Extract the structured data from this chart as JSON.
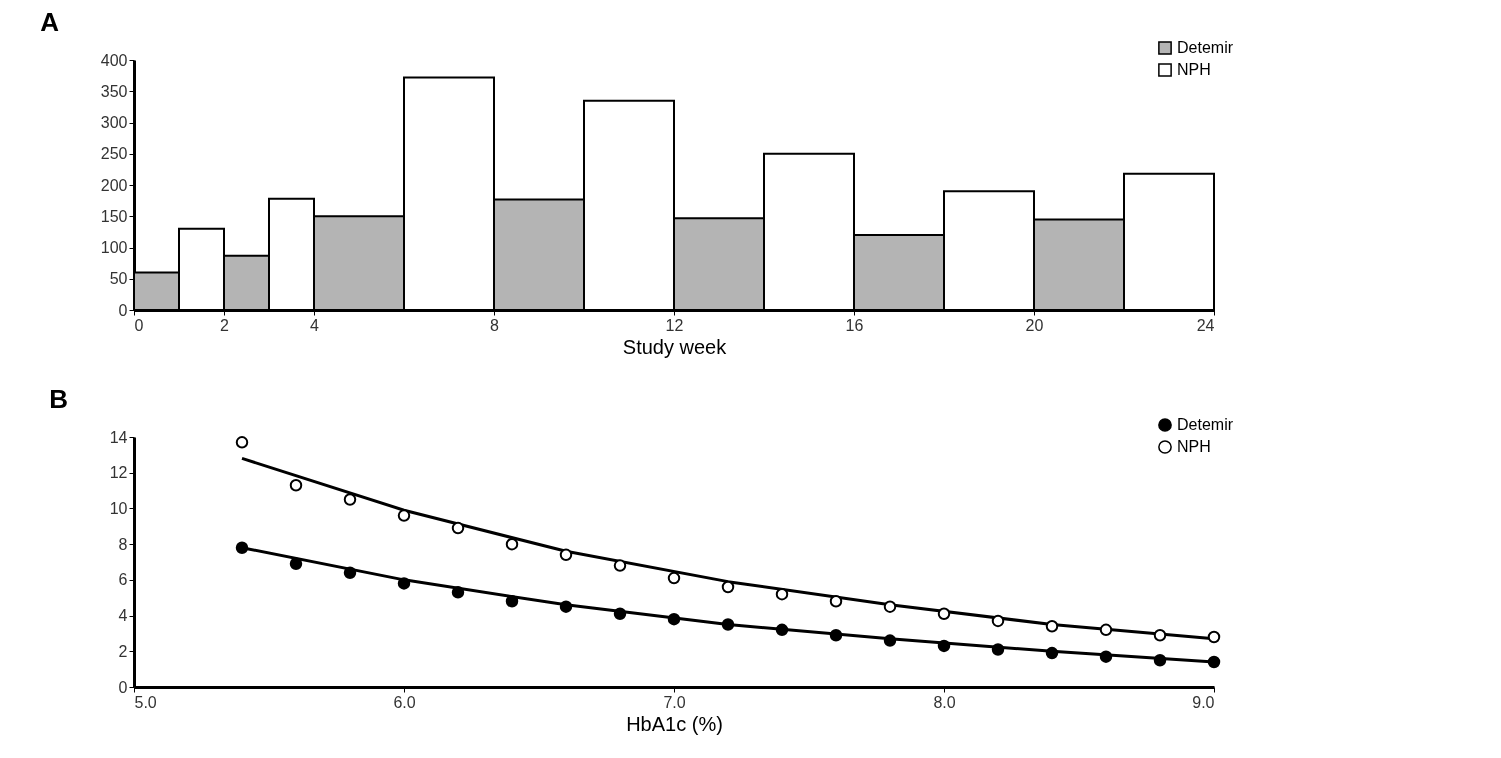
{
  "chart_data": [
    {
      "type": "bar",
      "title": "A",
      "xlabel": "Study week",
      "xlim": [
        0,
        24
      ],
      "xticks": [
        0,
        2,
        4,
        8,
        12,
        16,
        20,
        24
      ],
      "ylim": [
        0,
        400
      ],
      "yticks": [
        0,
        50,
        100,
        150,
        200,
        250,
        300,
        350,
        400
      ],
      "grid": false,
      "legend": "top right",
      "series": [
        {
          "name": "Detemir",
          "color": "#b4b4b4",
          "x": [
            0.5,
            2.5,
            5,
            9,
            13,
            17,
            21
          ],
          "values": [
            60,
            87,
            150,
            177,
            147,
            120,
            145
          ]
        },
        {
          "name": "NPH",
          "color": "#ffffff",
          "x": [
            1.5,
            3.5,
            7,
            11,
            15,
            19,
            23
          ],
          "values": [
            130,
            178,
            372,
            335,
            250,
            190,
            218
          ]
        }
      ]
    },
    {
      "type": "scatter",
      "title": "B",
      "xlabel": "HbA1c (%)",
      "xlim": [
        5.0,
        9.0
      ],
      "xticks": [
        {
          "value": 5,
          "label": "5.0"
        },
        {
          "value": 6,
          "label": "6.0"
        },
        {
          "value": 7,
          "label": "7.0"
        },
        {
          "value": 8,
          "label": "8.0"
        },
        {
          "value": 9,
          "label": "9.0"
        }
      ],
      "ylim": [
        0,
        14
      ],
      "yticks": [
        0,
        2,
        4,
        6,
        8,
        10,
        12,
        14
      ],
      "grid": false,
      "legend": "top right",
      "marker": "circle",
      "series": [
        {
          "name": "Detemir",
          "color": "#000000",
          "x": [
            5.4,
            5.6,
            5.8,
            6.0,
            6.2,
            6.4,
            6.6,
            6.8,
            7.0,
            7.2,
            7.4,
            7.6,
            7.8,
            8.0,
            8.2,
            8.4,
            8.6,
            8.8,
            9.0
          ],
          "values": [
            7.8,
            6.9,
            6.4,
            5.8,
            5.3,
            4.8,
            4.5,
            4.1,
            3.8,
            3.5,
            3.2,
            2.9,
            2.6,
            2.3,
            2.1,
            1.9,
            1.7,
            1.5,
            1.4
          ]
        },
        {
          "name": "NPH",
          "color": "#ffffff",
          "x": [
            5.4,
            5.6,
            5.8,
            6.0,
            6.2,
            6.4,
            6.6,
            6.8,
            7.0,
            7.2,
            7.4,
            7.6,
            7.8,
            8.0,
            8.2,
            8.4,
            8.6,
            8.8,
            9.0
          ],
          "values": [
            13.7,
            11.3,
            10.5,
            9.6,
            8.9,
            8.0,
            7.4,
            6.8,
            6.1,
            5.6,
            5.2,
            4.8,
            4.5,
            4.1,
            3.7,
            3.4,
            3.2,
            2.9,
            2.8
          ]
        },
        {
          "type": "line",
          "marker": "none",
          "color": "#000000",
          "x": [
            5.4,
            6.0,
            6.6,
            7.2,
            7.8,
            8.4,
            9.0
          ],
          "values": [
            7.8,
            6.0,
            4.6,
            3.5,
            2.7,
            2.0,
            1.4
          ]
        },
        {
          "type": "line",
          "marker": "none",
          "color": "#000000",
          "x": [
            5.4,
            6.0,
            6.6,
            7.2,
            7.8,
            8.4,
            9.0
          ],
          "values": [
            12.8,
            9.9,
            7.6,
            5.9,
            4.6,
            3.5,
            2.7
          ]
        }
      ]
    }
  ]
}
